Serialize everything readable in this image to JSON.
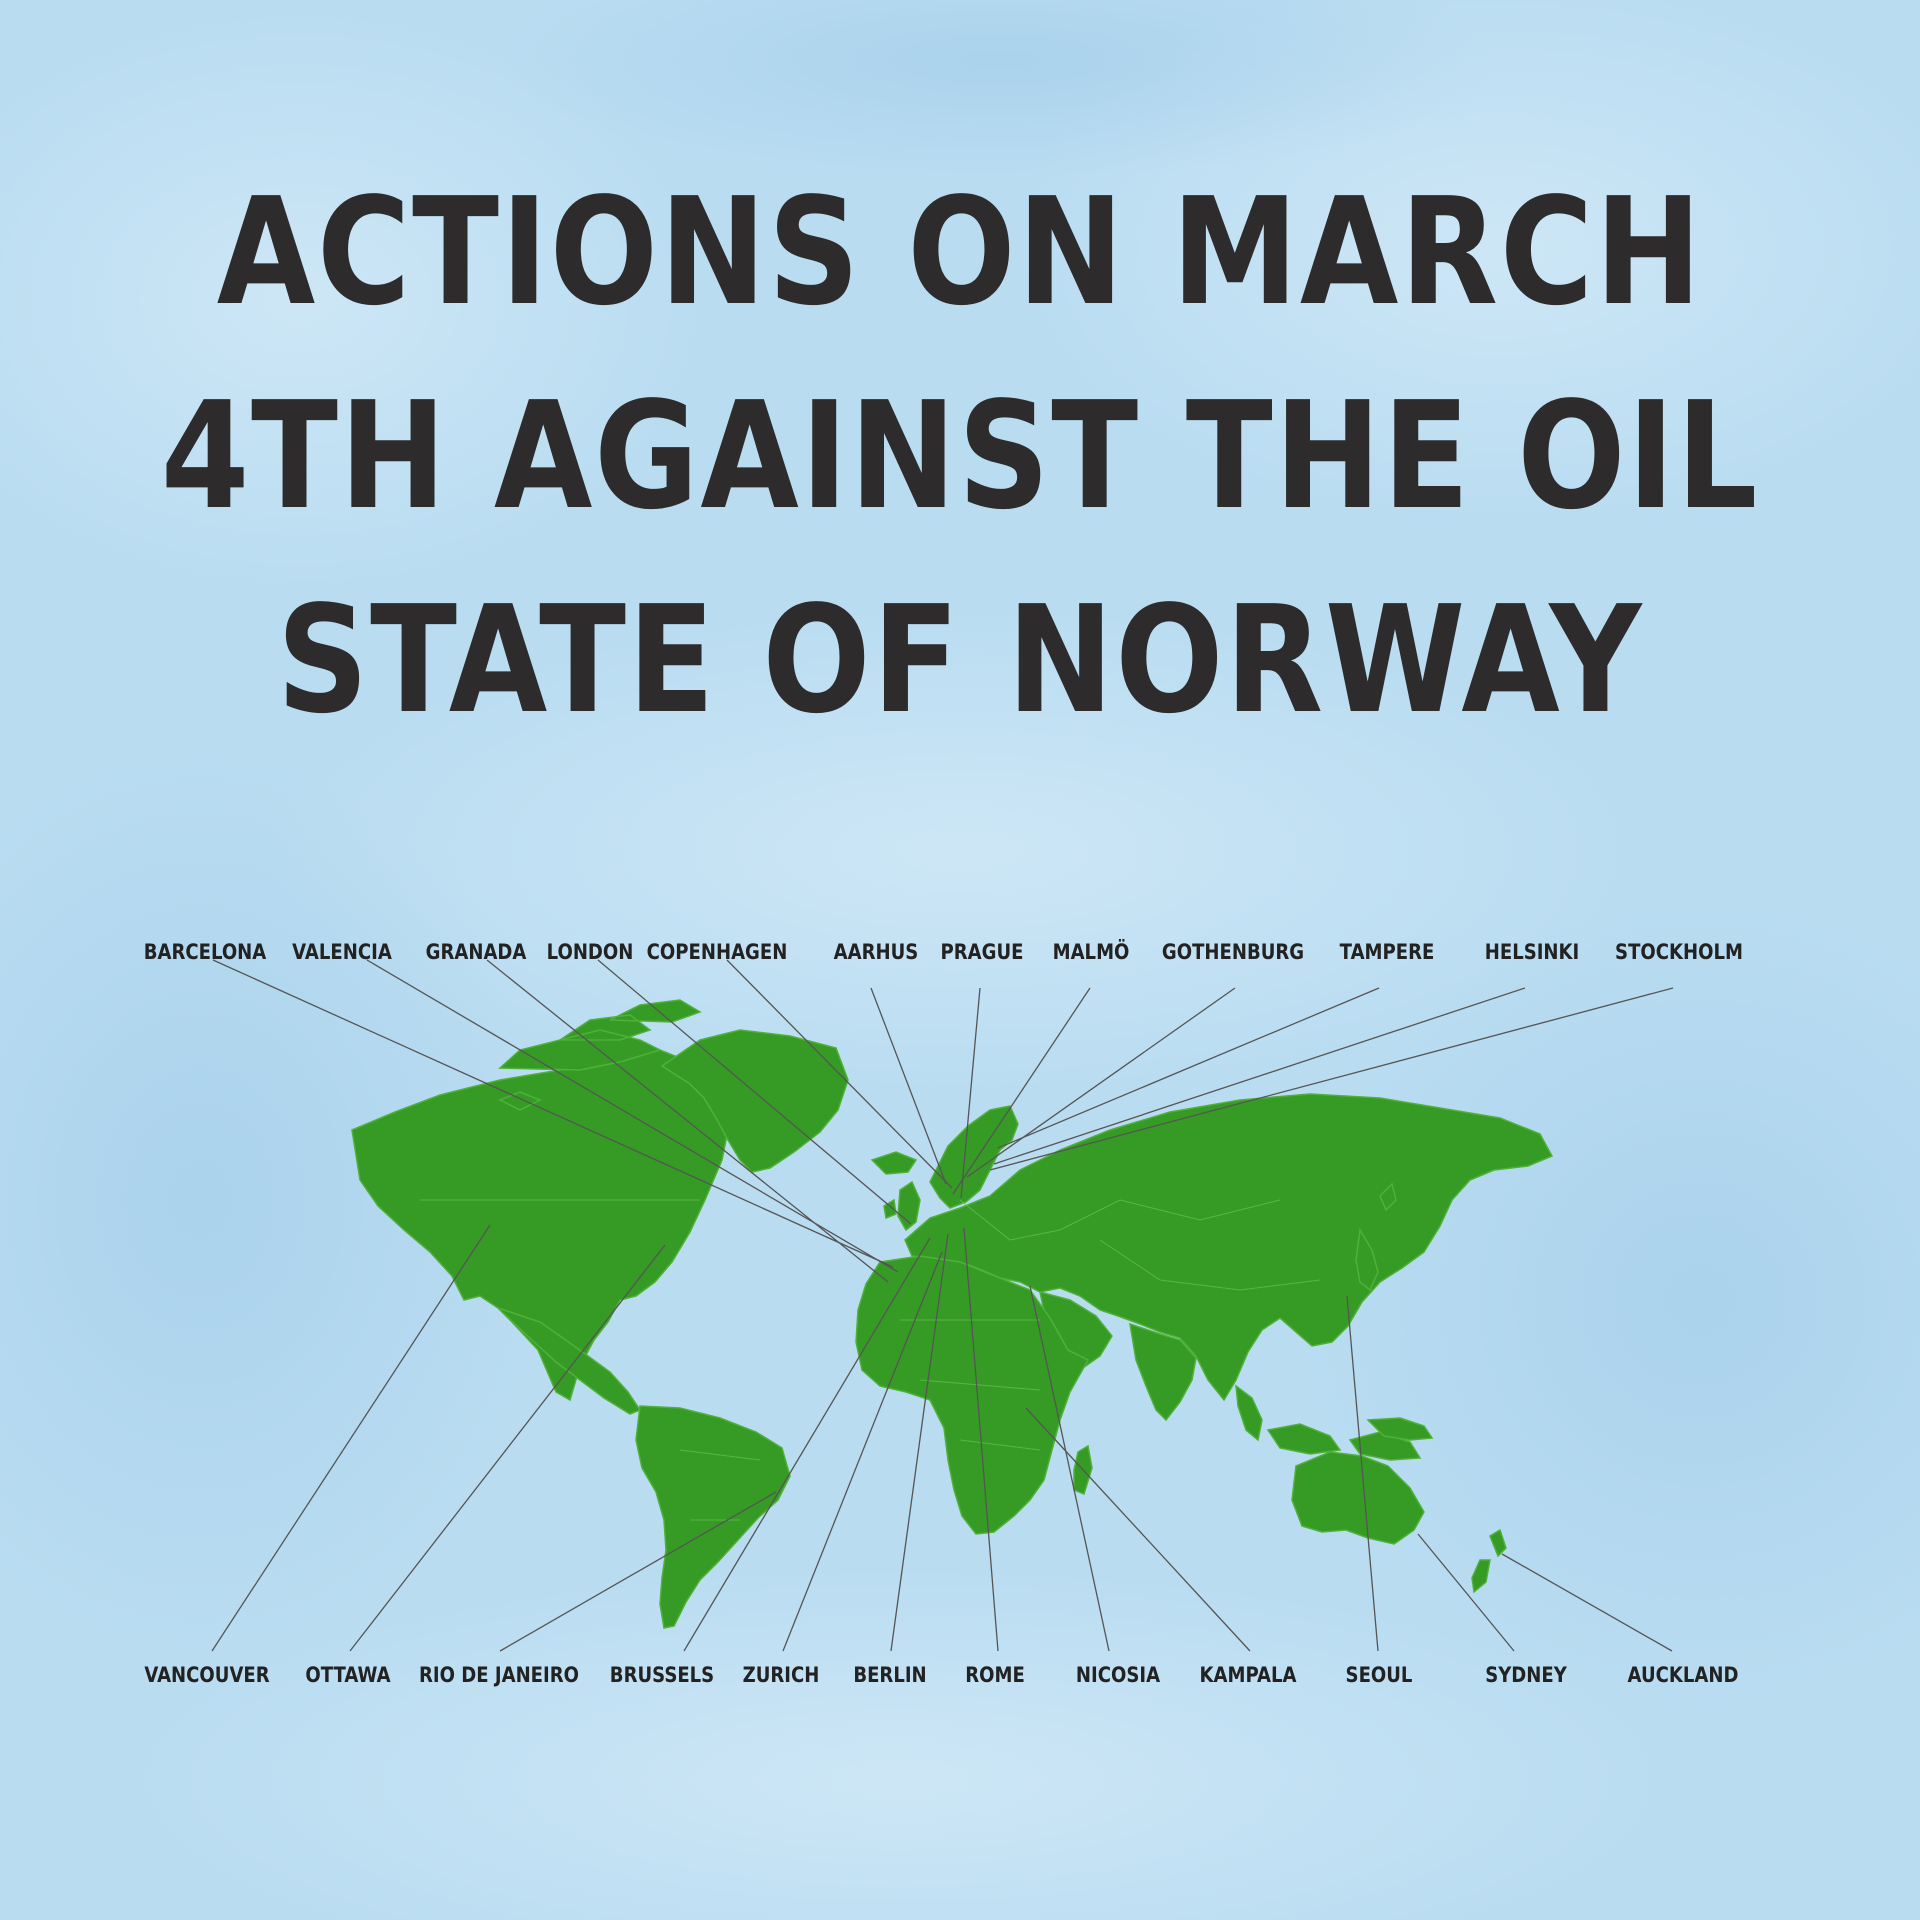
{
  "title": {
    "lines": [
      "ACTIONS ON MARCH",
      "4TH AGAINST THE OIL",
      "STATE OF NORWAY"
    ],
    "color": "#2d2b2c"
  },
  "colors": {
    "background": "#b9dcf1",
    "land": "#369b24",
    "leader_line": "#555555"
  },
  "map": {
    "type": "world-map",
    "cities_top": [
      "BARCELONA",
      "VALENCIA",
      "GRANADA",
      "LONDON",
      "COPENHAGEN",
      "AARHUS",
      "PRAGUE",
      "MALMÖ",
      "GOTHENBURG",
      "TAMPERE",
      "HELSINKI",
      "STOCKHOLM"
    ],
    "cities_bottom": [
      "VANCOUVER",
      "OTTAWA",
      "RIO DE JANEIRO",
      "BRUSSELS",
      "ZURICH",
      "BERLIN",
      "ROME",
      "NICOSIA",
      "KAMPALA",
      "SEOUL",
      "SYDNEY",
      "AUCKLAND"
    ]
  }
}
